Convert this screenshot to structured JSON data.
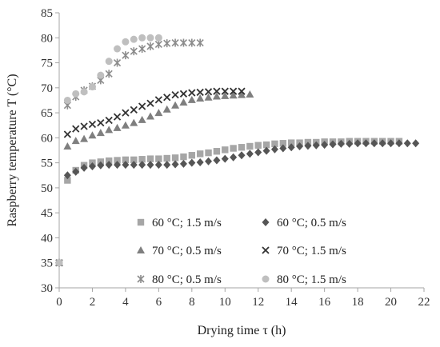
{
  "chart_data": {
    "type": "scatter",
    "title": "",
    "xlabel": "Drying time τ (h)",
    "ylabel": "Raspberry temperature T (°C)",
    "xlim": [
      0,
      22
    ],
    "ylim": [
      30,
      85
    ],
    "xticks": [
      0,
      2,
      4,
      6,
      8,
      10,
      12,
      14,
      16,
      18,
      20,
      22
    ],
    "yticks": [
      30,
      35,
      40,
      45,
      50,
      55,
      60,
      65,
      70,
      75,
      80,
      85
    ],
    "grid": false,
    "legend_position": "lower-center",
    "series": [
      {
        "name": "60 °C; 1.5 m/s",
        "marker": "square",
        "color": "#a6a6a6",
        "x": [
          0,
          0.5,
          1,
          1.5,
          2,
          2.5,
          3,
          3.5,
          4,
          4.5,
          5,
          5.5,
          6,
          6.5,
          7,
          7.5,
          8,
          8.5,
          9,
          9.5,
          10,
          10.5,
          11,
          11.5,
          12,
          12.5,
          13,
          13.5,
          14,
          14.5,
          15,
          15.5,
          16,
          16.5,
          17,
          17.5,
          18,
          18.5,
          19,
          19.5,
          20,
          20.5
        ],
        "y": [
          35,
          51.5,
          53.5,
          54.5,
          55,
          55.2,
          55.4,
          55.5,
          55.6,
          55.6,
          55.7,
          55.8,
          55.8,
          55.9,
          56,
          56.2,
          56.5,
          56.8,
          57,
          57.3,
          57.6,
          57.9,
          58.1,
          58.3,
          58.5,
          58.6,
          58.8,
          58.9,
          59,
          59,
          59.1,
          59.1,
          59.2,
          59.2,
          59.2,
          59.3,
          59.3,
          59.3,
          59.3,
          59.3,
          59.3,
          59.3
        ]
      },
      {
        "name": "60 °C; 0.5 m/s",
        "marker": "diamond",
        "color": "#555555",
        "x": [
          0,
          0.5,
          1,
          1.5,
          2,
          2.5,
          3,
          3.5,
          4,
          4.5,
          5,
          5.5,
          6,
          6.5,
          7,
          7.5,
          8,
          8.5,
          9,
          9.5,
          10,
          10.5,
          11,
          11.5,
          12,
          12.5,
          13,
          13.5,
          14,
          14.5,
          15,
          15.5,
          16,
          16.5,
          17,
          17.5,
          18,
          18.5,
          19,
          19.5,
          20,
          20.5,
          21,
          21.5
        ],
        "y": [
          35,
          52.5,
          53.2,
          54,
          54.3,
          54.5,
          54.6,
          54.6,
          54.6,
          54.6,
          54.6,
          54.6,
          54.6,
          54.6,
          54.7,
          54.8,
          55,
          55.1,
          55.3,
          55.5,
          55.8,
          56.1,
          56.5,
          56.8,
          57.1,
          57.4,
          57.7,
          57.9,
          58.1,
          58.3,
          58.4,
          58.5,
          58.6,
          58.7,
          58.8,
          58.8,
          58.9,
          58.9,
          58.9,
          58.9,
          58.9,
          58.9,
          58.9,
          58.9
        ]
      },
      {
        "name": "70 °C; 0.5 m/s",
        "marker": "triangle",
        "color": "#7f7f7f",
        "x": [
          0,
          0.5,
          1,
          1.5,
          2,
          2.5,
          3,
          3.5,
          4,
          4.5,
          5,
          5.5,
          6,
          6.5,
          7,
          7.5,
          8,
          8.5,
          9,
          9.5,
          10,
          10.5,
          11,
          11.5
        ],
        "y": [
          35,
          58.3,
          59.4,
          59.8,
          60.5,
          61,
          61.6,
          62,
          62.5,
          63,
          63.6,
          64.3,
          65,
          65.7,
          66.5,
          67.1,
          67.6,
          67.9,
          68.1,
          68.3,
          68.4,
          68.5,
          68.6,
          68.7
        ]
      },
      {
        "name": "70 °C; 1.5 m/s",
        "marker": "x",
        "color": "#333333",
        "x": [
          0,
          0.5,
          1,
          1.5,
          2,
          2.5,
          3,
          3.5,
          4,
          4.5,
          5,
          5.5,
          6,
          6.5,
          7,
          7.5,
          8,
          8.5,
          9,
          9.5,
          10,
          10.5,
          11
        ],
        "y": [
          35,
          60.7,
          61.8,
          62.3,
          62.7,
          63,
          63.5,
          64.2,
          65,
          65.6,
          66.3,
          66.9,
          67.6,
          68.1,
          68.6,
          68.8,
          69,
          69.1,
          69.2,
          69.3,
          69.3,
          69.3,
          69.3
        ]
      },
      {
        "name": "80 °C; 0.5 m/s",
        "marker": "star",
        "color": "#8c8c8c",
        "x": [
          0,
          0.5,
          1,
          1.5,
          2,
          2.5,
          3,
          3.5,
          4,
          4.5,
          5,
          5.5,
          6,
          6.5,
          7,
          7.5,
          8,
          8.5
        ],
        "y": [
          35,
          66.5,
          68.2,
          69.5,
          70.3,
          71.5,
          72.8,
          75,
          76.5,
          77.3,
          77.8,
          78.3,
          78.7,
          78.9,
          79,
          79,
          79,
          79
        ]
      },
      {
        "name": "80 °C; 1.5 m/s",
        "marker": "circle",
        "color": "#bfbfbf",
        "x": [
          0,
          0.5,
          1,
          1.5,
          2,
          2.5,
          3,
          3.5,
          4,
          4.5,
          5,
          5.5,
          6
        ],
        "y": [
          35,
          67.5,
          68.8,
          69.2,
          70.2,
          72.5,
          75.3,
          77.8,
          79.2,
          79.7,
          80,
          80,
          80
        ]
      }
    ]
  }
}
